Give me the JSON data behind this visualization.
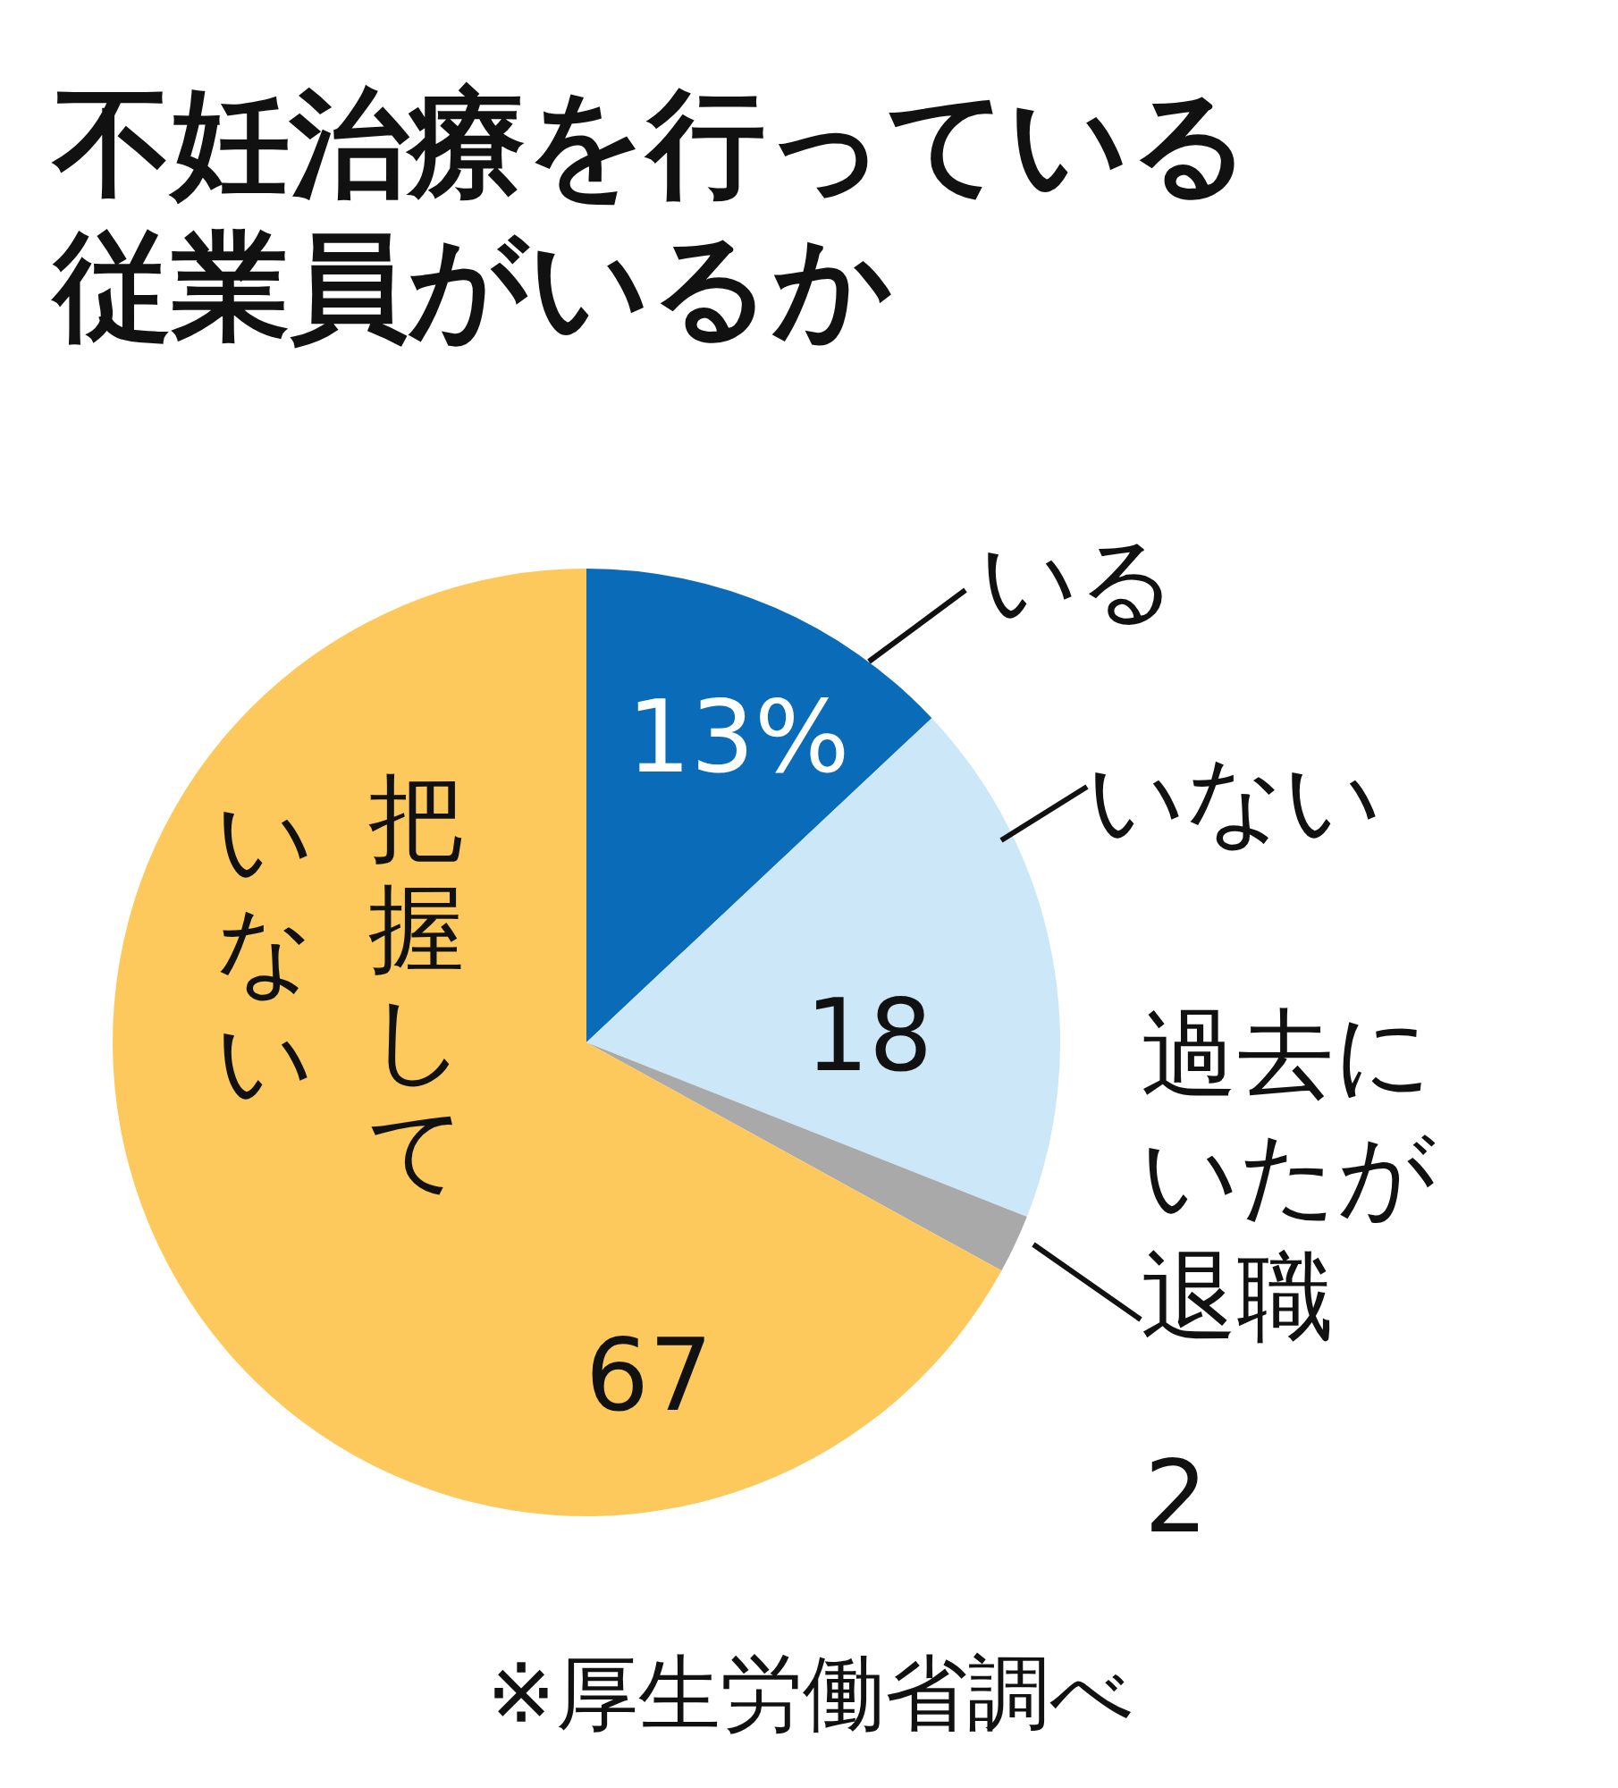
{
  "chart_data": {
    "type": "pie",
    "title": "不妊治療を行っている従業員がいるか",
    "categories": [
      "いる",
      "いない",
      "過去にいたが退職",
      "把握していない"
    ],
    "values": [
      13,
      18,
      2,
      67
    ],
    "colors": [
      "#0a6cb8",
      "#cce8f8",
      "#a9a9a9",
      "#fdc95c"
    ],
    "value_labels": [
      "13%",
      "18",
      "2",
      "67"
    ],
    "annotations": [
      "※厚生労働省調べ"
    ]
  }
}
